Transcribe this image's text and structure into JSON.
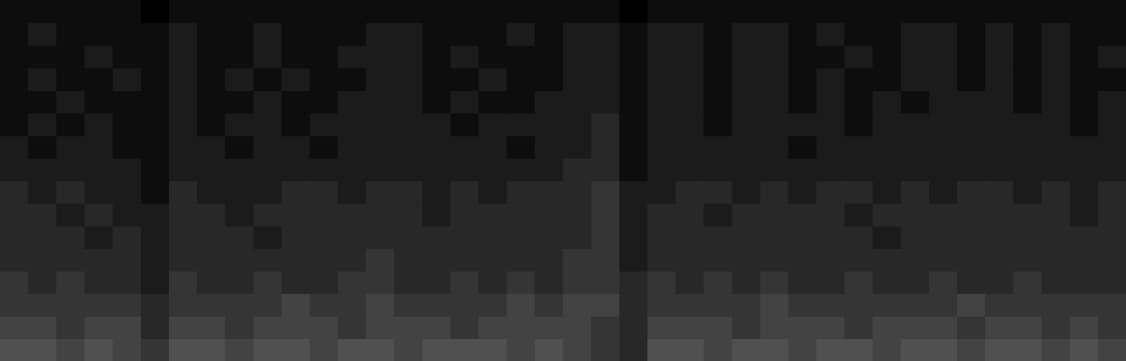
{
  "chart_data": {
    "type": "heatmap",
    "tick_labels": false,
    "xlim": [
      0,
      40
    ],
    "ylim": [
      0,
      16
    ],
    "zlim": [
      0,
      9
    ],
    "cells": [
      [
        6,
        6,
        5,
        6,
        5,
        4,
        6,
        6,
        5,
        6,
        6,
        5,
        6,
        6,
        5,
        6,
        6,
        6,
        5,
        6,
        5,
        4,
        3,
        6,
        6,
        5,
        6,
        6,
        5,
        6,
        6,
        5,
        6,
        6,
        5,
        6,
        6,
        5,
        6,
        5
      ],
      [
        5,
        5,
        4,
        5,
        5,
        3,
        5,
        5,
        4,
        5,
        5,
        5,
        4,
        5,
        5,
        5,
        4,
        5,
        5,
        5,
        5,
        4,
        3,
        5,
        5,
        5,
        4,
        5,
        5,
        5,
        4,
        5,
        5,
        5,
        4,
        5,
        5,
        4,
        5,
        4
      ],
      [
        4,
        4,
        4,
        4,
        4,
        3,
        4,
        4,
        4,
        4,
        5,
        4,
        4,
        5,
        4,
        4,
        4,
        4,
        5,
        4,
        5,
        5,
        3,
        4,
        4,
        4,
        4,
        5,
        4,
        4,
        4,
        4,
        4,
        4,
        5,
        4,
        4,
        4,
        4,
        4
      ],
      [
        4,
        3,
        4,
        3,
        3,
        2,
        4,
        3,
        3,
        4,
        3,
        3,
        4,
        4,
        3,
        3,
        4,
        3,
        4,
        3,
        4,
        4,
        3,
        4,
        3,
        4,
        3,
        4,
        3,
        3,
        4,
        3,
        3,
        4,
        3,
        3,
        4,
        3,
        3,
        3
      ],
      [
        3,
        3,
        3,
        3,
        3,
        2,
        3,
        3,
        3,
        3,
        3,
        3,
        3,
        4,
        3,
        3,
        3,
        3,
        3,
        3,
        4,
        4,
        2,
        3,
        3,
        3,
        3,
        3,
        3,
        3,
        3,
        3,
        3,
        3,
        3,
        3,
        3,
        3,
        3,
        3
      ],
      [
        3,
        3,
        3,
        2,
        3,
        2,
        3,
        3,
        3,
        2,
        3,
        3,
        3,
        3,
        3,
        3,
        3,
        3,
        3,
        3,
        3,
        4,
        2,
        3,
        3,
        3,
        3,
        3,
        3,
        3,
        3,
        2,
        3,
        3,
        3,
        3,
        3,
        3,
        3,
        3
      ],
      [
        3,
        3,
        2,
        3,
        2,
        2,
        3,
        3,
        2,
        3,
        3,
        3,
        3,
        3,
        3,
        2,
        3,
        3,
        3,
        3,
        3,
        4,
        2,
        3,
        3,
        2,
        3,
        3,
        3,
        3,
        2,
        3,
        3,
        3,
        3,
        3,
        3,
        3,
        2,
        3
      ],
      [
        3,
        2,
        3,
        2,
        2,
        1,
        3,
        2,
        2,
        2,
        3,
        3,
        2,
        3,
        3,
        2,
        3,
        2,
        3,
        3,
        3,
        4,
        2,
        2,
        3,
        3,
        2,
        3,
        2,
        3,
        3,
        2,
        3,
        2,
        3,
        3,
        2,
        3,
        2,
        3
      ],
      [
        2,
        2,
        2,
        2,
        2,
        1,
        2,
        2,
        2,
        2,
        2,
        2,
        2,
        2,
        2,
        2,
        2,
        2,
        2,
        2,
        3,
        3,
        1,
        2,
        2,
        2,
        2,
        2,
        2,
        2,
        2,
        2,
        2,
        2,
        2,
        2,
        2,
        2,
        2,
        2
      ],
      [
        2,
        1,
        2,
        2,
        1,
        1,
        2,
        2,
        1,
        2,
        2,
        1,
        2,
        2,
        2,
        2,
        2,
        2,
        1,
        2,
        2,
        3,
        1,
        2,
        2,
        2,
        2,
        2,
        1,
        2,
        2,
        2,
        2,
        2,
        2,
        2,
        2,
        2,
        2,
        2
      ],
      [
        1,
        2,
        1,
        2,
        1,
        1,
        2,
        1,
        2,
        2,
        1,
        2,
        2,
        2,
        2,
        2,
        1,
        2,
        2,
        2,
        2,
        3,
        1,
        2,
        2,
        1,
        2,
        2,
        2,
        2,
        1,
        2,
        2,
        2,
        2,
        2,
        2,
        2,
        1,
        2
      ],
      [
        1,
        1,
        2,
        1,
        1,
        1,
        2,
        1,
        1,
        2,
        1,
        1,
        2,
        2,
        2,
        1,
        2,
        1,
        1,
        2,
        2,
        2,
        1,
        2,
        2,
        1,
        2,
        2,
        1,
        2,
        1,
        2,
        1,
        2,
        2,
        2,
        1,
        2,
        1,
        2
      ],
      [
        1,
        2,
        1,
        1,
        2,
        1,
        2,
        1,
        2,
        1,
        2,
        1,
        1,
        2,
        2,
        1,
        1,
        2,
        1,
        1,
        2,
        2,
        1,
        2,
        2,
        1,
        2,
        2,
        1,
        2,
        1,
        1,
        2,
        2,
        1,
        2,
        1,
        2,
        1,
        1
      ],
      [
        1,
        1,
        1,
        2,
        1,
        1,
        2,
        1,
        1,
        2,
        1,
        1,
        2,
        2,
        2,
        1,
        2,
        1,
        1,
        1,
        2,
        2,
        1,
        2,
        2,
        1,
        2,
        2,
        1,
        1,
        2,
        1,
        2,
        2,
        1,
        2,
        1,
        2,
        1,
        2
      ],
      [
        1,
        2,
        1,
        1,
        1,
        1,
        2,
        1,
        1,
        2,
        1,
        1,
        1,
        2,
        2,
        1,
        1,
        1,
        2,
        1,
        2,
        2,
        1,
        2,
        2,
        1,
        2,
        2,
        1,
        2,
        1,
        1,
        2,
        2,
        1,
        2,
        1,
        2,
        1,
        1
      ],
      [
        1,
        1,
        1,
        1,
        1,
        0,
        1,
        1,
        1,
        1,
        1,
        1,
        1,
        1,
        1,
        1,
        1,
        1,
        1,
        1,
        1,
        1,
        0,
        1,
        1,
        1,
        1,
        1,
        1,
        1,
        1,
        1,
        1,
        1,
        1,
        1,
        1,
        1,
        1,
        1
      ]
    ]
  }
}
